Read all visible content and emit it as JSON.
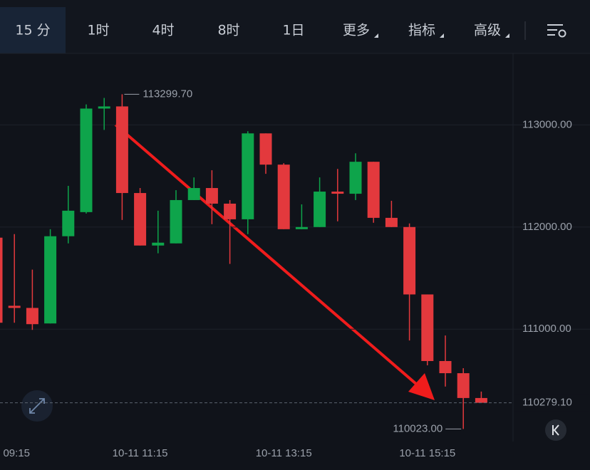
{
  "toolbar": {
    "tabs": [
      "15 分",
      "1时",
      "4时",
      "8时",
      "1日",
      "更多",
      "指标",
      "高级"
    ]
  },
  "chart_data": {
    "type": "candlestick",
    "categories": [
      "09:15",
      null,
      null,
      null,
      null,
      null,
      null,
      null,
      "10-11 11:15",
      null,
      null,
      null,
      null,
      null,
      null,
      null,
      "10-11 13:15",
      null,
      null,
      null,
      null,
      null,
      null,
      null,
      "10-11 15:15",
      null,
      null,
      null
    ],
    "open": [
      111896,
      111229,
      111208,
      111056,
      111910,
      112146,
      113160,
      113181,
      112333,
      111819,
      111840,
      112264,
      112382,
      112229,
      112076,
      112917,
      112611,
      111979,
      112000,
      112347,
      112326,
      112639,
      112090,
      112000,
      111340,
      110688,
      110569,
      110326
    ],
    "high": [
      111931,
      111931,
      111583,
      111979,
      112403,
      113201,
      113264,
      113299.7,
      112382,
      112160,
      112361,
      112486,
      112556,
      112264,
      112938,
      112917,
      112625,
      112222,
      112486,
      112569,
      112722,
      112639,
      112257,
      112035,
      111340,
      110938,
      110618,
      110389
    ],
    "low": [
      111063,
      111063,
      110993,
      111056,
      111840,
      112132,
      112951,
      112069,
      111819,
      111743,
      111840,
      112264,
      112028,
      111639,
      111931,
      112521,
      111979,
      111979,
      112000,
      112056,
      112264,
      112042,
      112000,
      110889,
      110646,
      110438,
      110023,
      110279.1
    ],
    "close": [
      111063,
      111208,
      111049,
      111910,
      112160,
      113160,
      113181,
      112333,
      111819,
      111847,
      112264,
      112382,
      112229,
      112076,
      112917,
      112611,
      111979,
      112000,
      112347,
      112326,
      112639,
      112090,
      112000,
      111340,
      110688,
      110569,
      110326,
      110279.1
    ],
    "up_color": "#0ea44b",
    "down_color": "#e3393d",
    "ylim": [
      109900,
      113700
    ],
    "yticks": [
      {
        "value": 111000,
        "label": "111000.00"
      },
      {
        "value": 112000,
        "label": "112000.00"
      },
      {
        "value": 113000,
        "label": "113000.00"
      }
    ],
    "grid": true,
    "high_label": {
      "value": 113299.7,
      "label": "113299.70"
    },
    "low_label": {
      "value": 110023,
      "label": "110023.00"
    },
    "last_price": {
      "value": 110279.1,
      "label": "110279.10"
    }
  }
}
